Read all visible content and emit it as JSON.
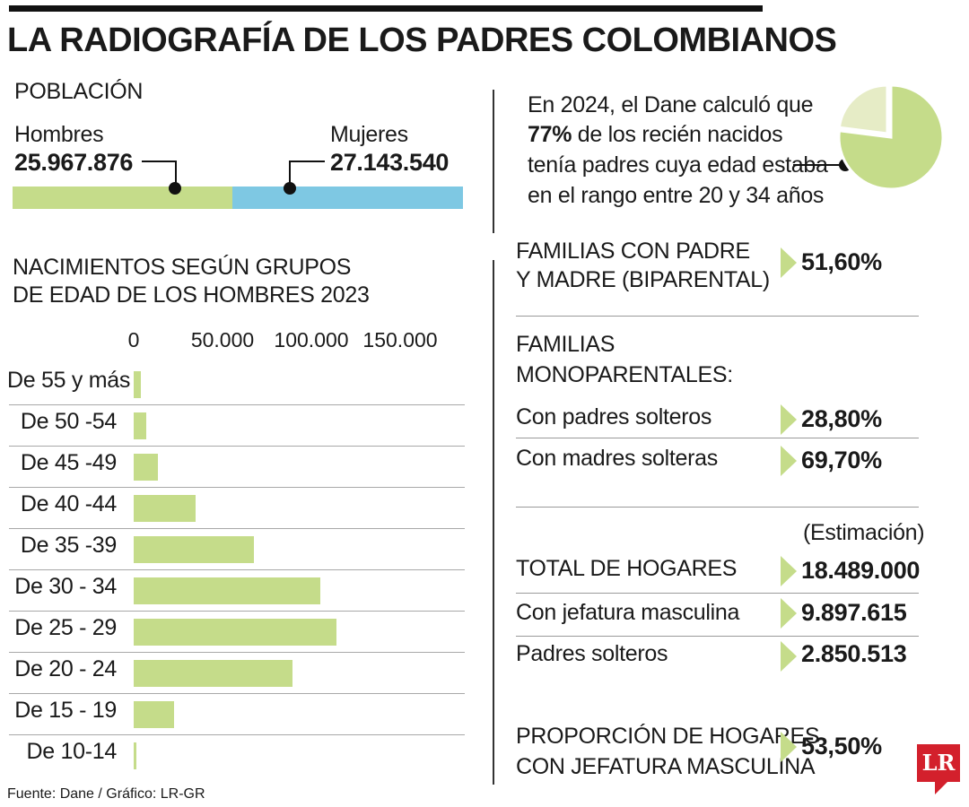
{
  "title": "LA RADIOGRAFÍA DE LOS PADRES COLOMBIANOS",
  "colors": {
    "bar_green": "#c5dc8a",
    "bar_blue": "#7ec8e3",
    "pie_light": "#e6ecc6",
    "logo_red": "#d3202c"
  },
  "poblacion": {
    "header": "POBLACIÓN",
    "hombres_label": "Hombres",
    "hombres_value": "25.967.876",
    "mujeres_label": "Mujeres",
    "mujeres_value": "27.143.540",
    "hombres_number": 25967876,
    "mujeres_number": 27143540
  },
  "pie_note": {
    "line1": "En 2024, el Dane calculó que",
    "line2_bold": "77%",
    "line2_rest": " de los recién nacidos",
    "line3": "tenía padres cuya edad estaba",
    "line4": "en el rango entre 20 y 34 años",
    "percent": 77
  },
  "chart_data": {
    "type": "bar",
    "orientation": "horizontal",
    "title": "NACIMIENTOS SEGÚN GRUPOS DE EDAD DE LOS HOMBRES 2023",
    "title_line1": "NACIMIENTOS SEGÚN GRUPOS",
    "title_line2": "DE EDAD DE LOS HOMBRES 2023",
    "xlim": [
      0,
      150000
    ],
    "xticks": [
      0,
      50000,
      100000,
      150000
    ],
    "xtick_labels": [
      "0",
      "50.000",
      "100.000",
      "150.000"
    ],
    "categories": [
      "De 55 y más",
      "De 50 -54",
      "De 45 -49",
      "De 40 -44",
      "De 35 -39",
      "De 30 - 34",
      "De 25 - 29",
      "De 20 - 24",
      "De 15 - 19",
      "De 10-14"
    ],
    "values": [
      4000,
      7000,
      13500,
      35000,
      67500,
      105000,
      114000,
      89500,
      22500,
      1200
    ]
  },
  "familias": {
    "biparental_line1": "FAMILIAS CON PADRE",
    "biparental_line2": "Y MADRE (BIPARENTAL)",
    "biparental_value": "51,60%",
    "mono_line1": "FAMILIAS",
    "mono_line2": "MONOPARENTALES:",
    "padres_solteros_label": "Con padres solteros",
    "padres_solteros_value": "28,80%",
    "madres_solteras_label": "Con madres solteras",
    "madres_solteras_value": "69,70%"
  },
  "hogares": {
    "estimacion": "(Estimación)",
    "total_label": "TOTAL DE HOGARES",
    "total_value": "18.489.000",
    "jefatura_label": "Con jefatura masculina",
    "jefatura_value": "9.897.615",
    "padres_solteros_label": "Padres solteros",
    "padres_solteros_value": "2.850.513",
    "proporcion_line1": "PROPORCIÓN DE HOGARES",
    "proporcion_line2": "CON JEFATURA MASCULINA",
    "proporcion_value": "53,50%"
  },
  "source": "Fuente: Dane / Gráfico: LR-GR",
  "logo_text": "LR"
}
